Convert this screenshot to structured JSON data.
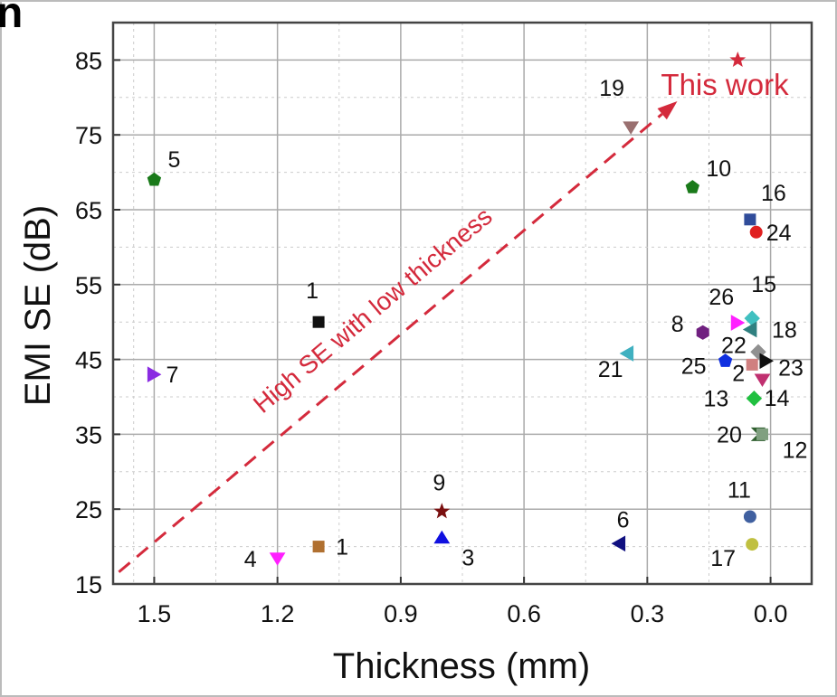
{
  "panel_label": "n",
  "chart_data": {
    "type": "scatter",
    "title": "",
    "xlabel": "Thickness (mm)",
    "ylabel": "EMI SE (dB)",
    "xlim": [
      1.6,
      -0.1
    ],
    "ylim": [
      15,
      90
    ],
    "x_reversed": true,
    "grid": true,
    "xticks": [
      "1.5",
      "1.2",
      "0.9",
      "0.6",
      "0.3",
      "0.0"
    ],
    "yticks": [
      "15",
      "25",
      "35",
      "45",
      "55",
      "65",
      "75",
      "85"
    ],
    "annotation": {
      "text": "High SE with low thickness",
      "color": "#d42a3c",
      "arrow_from": [
        1.586,
        16.6
      ],
      "arrow_to": [
        0.227,
        79.5
      ]
    },
    "highlight_label": {
      "text": "This work",
      "color": "#d42a3c"
    },
    "points": [
      {
        "label": "",
        "x": 0.08,
        "y": 85,
        "marker": "star",
        "color": "#d42a3c"
      },
      {
        "label": "19",
        "x": 0.34,
        "y": 76,
        "marker": "tri-down",
        "color": "#9a7070"
      },
      {
        "label": "5",
        "x": 1.5,
        "y": 69,
        "marker": "pentagon",
        "color": "#1a7a1a"
      },
      {
        "label": "10",
        "x": 0.19,
        "y": 68,
        "marker": "pentagon",
        "color": "#1a7a1a"
      },
      {
        "label": "16",
        "x": 0.05,
        "y": 63.7,
        "marker": "square",
        "color": "#304c9a"
      },
      {
        "label": "24",
        "x": 0.035,
        "y": 62,
        "marker": "circle",
        "color": "#e02020"
      },
      {
        "label": "1",
        "x": 1.1,
        "y": 50,
        "marker": "square",
        "color": "#111111"
      },
      {
        "label": "26",
        "x": 0.08,
        "y": 49.9,
        "marker": "tri-right",
        "color": "#ff20ff"
      },
      {
        "label": "15",
        "x": 0.045,
        "y": 50.5,
        "marker": "diamond",
        "color": "#40c0c0"
      },
      {
        "label": "18",
        "x": 0.05,
        "y": 49,
        "marker": "tri-left",
        "color": "#308080"
      },
      {
        "label": "8",
        "x": 0.165,
        "y": 48.6,
        "marker": "hexagon",
        "color": "#702080"
      },
      {
        "label": "22",
        "x": 0.03,
        "y": 46,
        "marker": "diamond",
        "color": "#909090"
      },
      {
        "label": "25",
        "x": 0.11,
        "y": 44.8,
        "marker": "pentagon",
        "color": "#1030e0"
      },
      {
        "label": "2",
        "x": 0.045,
        "y": 44.3,
        "marker": "square",
        "color": "#d08080"
      },
      {
        "label": "23",
        "x": 0.01,
        "y": 44.8,
        "marker": "tri-right",
        "color": "#101010"
      },
      {
        "label": "14",
        "x": 0.02,
        "y": 42.3,
        "marker": "tri-down",
        "color": "#c03070"
      },
      {
        "label": "13",
        "x": 0.04,
        "y": 39.8,
        "marker": "diamond",
        "color": "#20c040"
      },
      {
        "label": "21",
        "x": 0.35,
        "y": 45.8,
        "marker": "tri-left",
        "color": "#40b0c0"
      },
      {
        "label": "7",
        "x": 1.5,
        "y": 43,
        "marker": "tri-right",
        "color": "#8a2be2"
      },
      {
        "label": "20",
        "x": 0.03,
        "y": 35,
        "marker": "hourglass",
        "color": "#306030"
      },
      {
        "label": "12",
        "x": 0.02,
        "y": 35,
        "marker": "square",
        "color": "#80a080"
      },
      {
        "label": "9",
        "x": 0.8,
        "y": 24.7,
        "marker": "star",
        "color": "#7a1010"
      },
      {
        "label": "3",
        "x": 0.8,
        "y": 21.2,
        "marker": "tri-up",
        "color": "#1010e0"
      },
      {
        "label": "6",
        "x": 0.37,
        "y": 20.4,
        "marker": "tri-left",
        "color": "#101080"
      },
      {
        "label": "11",
        "x": 0.05,
        "y": 24,
        "marker": "circle",
        "color": "#4060a0"
      },
      {
        "label": "17",
        "x": 0.045,
        "y": 20.3,
        "marker": "circle",
        "color": "#c0c040"
      },
      {
        "label": "1",
        "x": 1.1,
        "y": 20,
        "marker": "square",
        "color": "#b07030"
      },
      {
        "label": "4",
        "x": 1.2,
        "y": 18.4,
        "marker": "tri-down",
        "color": "#ff20ff"
      }
    ]
  }
}
